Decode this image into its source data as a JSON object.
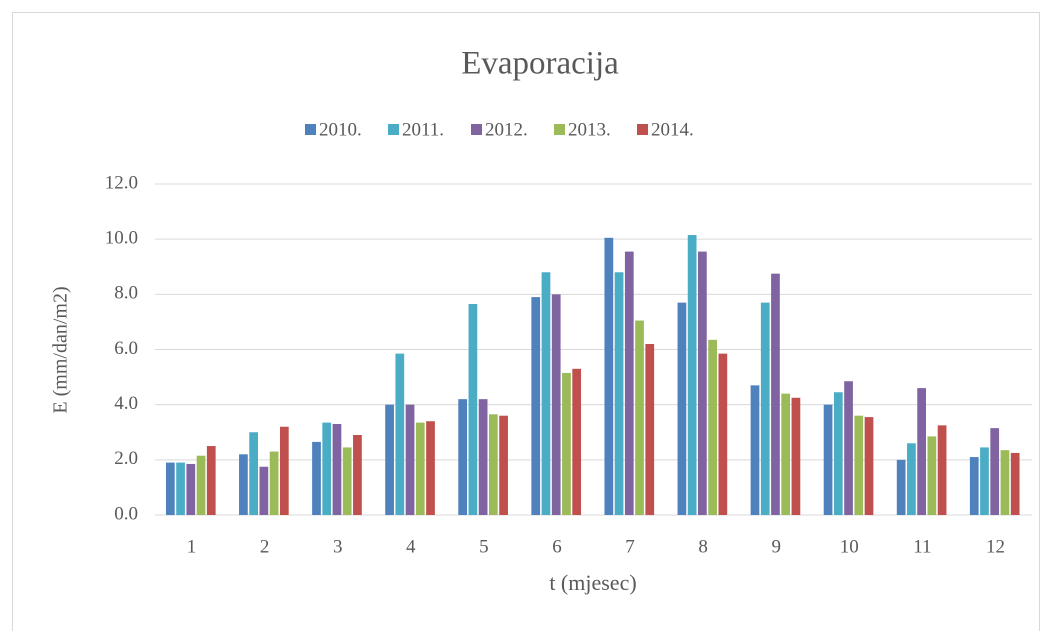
{
  "chart_data": {
    "type": "bar",
    "title": "Evaporacija",
    "x_label": "t (mjesec)",
    "y_label": "E (mm/dan/m2)",
    "categories": [
      "1",
      "2",
      "3",
      "4",
      "5",
      "6",
      "7",
      "8",
      "9",
      "10",
      "11",
      "12"
    ],
    "series": [
      {
        "name": "2010.",
        "color": "#4f81bd",
        "values": [
          1.9,
          2.2,
          2.65,
          4.0,
          4.2,
          7.9,
          10.05,
          7.7,
          4.7,
          4.0,
          2.0,
          2.1
        ]
      },
      {
        "name": "2011.",
        "color": "#4bacc6",
        "values": [
          1.9,
          3.0,
          3.35,
          5.85,
          7.65,
          8.8,
          8.8,
          10.15,
          7.7,
          4.45,
          2.6,
          2.45
        ]
      },
      {
        "name": "2012.",
        "color": "#8064a2",
        "values": [
          1.85,
          1.75,
          3.3,
          4.0,
          4.2,
          8.0,
          9.55,
          9.55,
          8.75,
          4.85,
          4.6,
          3.15
        ]
      },
      {
        "name": "2013.",
        "color": "#9bbb59",
        "values": [
          2.15,
          2.3,
          2.45,
          3.35,
          3.65,
          5.15,
          7.05,
          6.35,
          4.4,
          3.6,
          2.85,
          2.35
        ]
      },
      {
        "name": "2014.",
        "color": "#c0504d",
        "values": [
          2.5,
          3.2,
          2.9,
          3.4,
          3.6,
          5.3,
          6.2,
          5.85,
          4.25,
          3.55,
          3.25,
          2.25
        ]
      }
    ],
    "ylim": [
      0,
      12
    ],
    "yticks": [
      {
        "value": 0,
        "label": "0.0"
      },
      {
        "value": 2,
        "label": "2.0"
      },
      {
        "value": 4,
        "label": "4.0"
      },
      {
        "value": 6,
        "label": "6.0"
      },
      {
        "value": 8,
        "label": "8.0"
      },
      {
        "value": 10,
        "label": "10.0"
      },
      {
        "value": 12,
        "label": "12.0"
      }
    ],
    "grid": true,
    "legend": "top"
  }
}
